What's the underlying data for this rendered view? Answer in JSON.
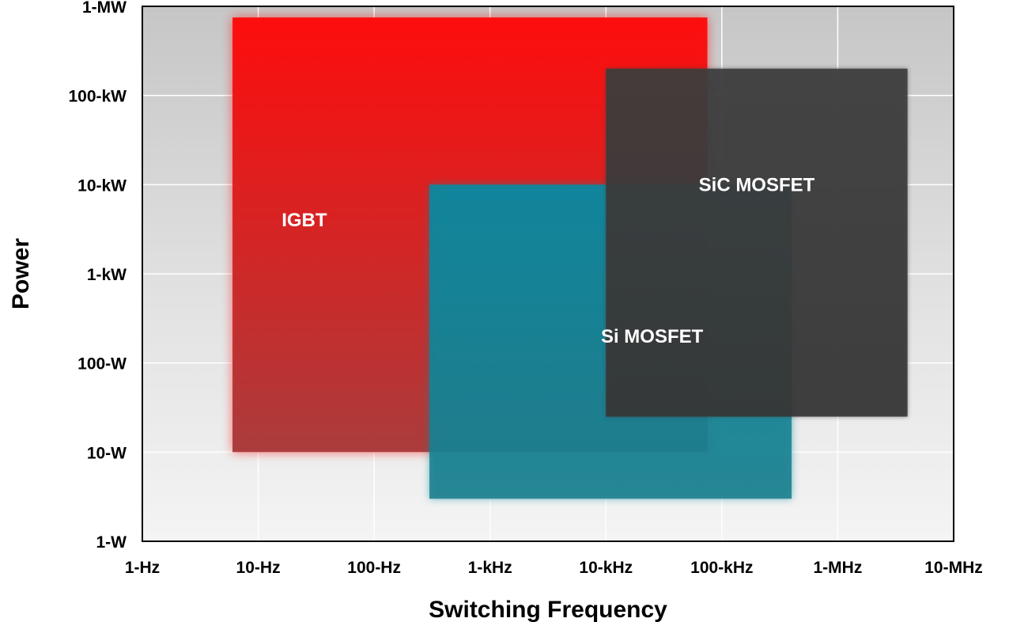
{
  "chart_data": {
    "type": "area",
    "title": "",
    "xlabel": "Switching Frequency",
    "ylabel": "Power",
    "x_scale": "log",
    "y_scale": "log",
    "xlim_hz": [
      1,
      10000000
    ],
    "ylim_w": [
      1,
      1000000
    ],
    "grid": true,
    "legend": "none",
    "x_ticks": [
      {
        "value": 1,
        "label": "1-Hz"
      },
      {
        "value": 10,
        "label": "10-Hz"
      },
      {
        "value": 100,
        "label": "100-Hz"
      },
      {
        "value": 1000,
        "label": "1-kHz"
      },
      {
        "value": 10000,
        "label": "10-kHz"
      },
      {
        "value": 100000,
        "label": "100-kHz"
      },
      {
        "value": 1000000,
        "label": "1-MHz"
      },
      {
        "value": 10000000,
        "label": "10-MHz"
      }
    ],
    "y_ticks": [
      {
        "value": 1,
        "label": "1-W"
      },
      {
        "value": 10,
        "label": "10-W"
      },
      {
        "value": 100,
        "label": "100-W"
      },
      {
        "value": 1000,
        "label": "1-kW"
      },
      {
        "value": 10000,
        "label": "10-kW"
      },
      {
        "value": 100000,
        "label": "100-kW"
      },
      {
        "value": 1000000,
        "label": "1-MW"
      }
    ],
    "regions": [
      {
        "name": "IGBT",
        "freq_hz": [
          6,
          75000
        ],
        "power_w": [
          10,
          750000
        ],
        "color": "#ff0a0a",
        "color_bottom": "#a83a3a",
        "opacity": 0.97
      },
      {
        "name": "Si MOSFET",
        "freq_hz": [
          300,
          400000
        ],
        "power_w": [
          3,
          10000
        ],
        "color": "#058ba3",
        "color_bottom": "#1c7e8c",
        "opacity": 0.88
      },
      {
        "name": "SiC MOSFET",
        "freq_hz": [
          10000,
          4000000
        ],
        "power_w": [
          25,
          200000
        ],
        "color": "#3d3d3d",
        "color_bottom": "#353535",
        "opacity": 0.9
      }
    ]
  }
}
